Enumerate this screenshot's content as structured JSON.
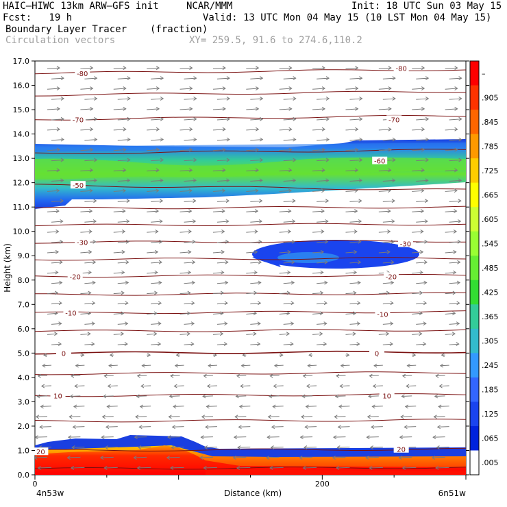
{
  "header": {
    "model": "HAIC–HIWC 13km ARW–GFS init",
    "org": "NCAR/MMM",
    "init": "Init: 18 UTC Sun 03 May 15",
    "fcst": "Fcst:   19 h",
    "valid": "Valid: 13 UTC Mon 04 May 15 (10 LST Mon 04 May 15)",
    "field": "Boundary Layer Tracer",
    "units": "(fraction)",
    "vectors": "Circulation vectors",
    "xy": "XY= 259.5, 91.6 to 274.6,110.2"
  },
  "chart_data": {
    "type": "cross-section",
    "title": "Boundary Layer Tracer",
    "units": "(fraction)",
    "xlabel": "Distance (km)",
    "ylabel": "Height (km)",
    "x_ticks": [
      "0",
      "200"
    ],
    "x_tick_values": [
      0,
      200
    ],
    "xlim": [
      0,
      300
    ],
    "ylim": [
      0,
      17
    ],
    "y_ticks": [
      "0.0",
      "1.0",
      "2.0",
      "3.0",
      "4.0",
      "5.0",
      "6.0",
      "7.0",
      "8.0",
      "9.0",
      "10.0",
      "11.0",
      "12.0",
      "13.0",
      "14.0",
      "15.0",
      "16.0",
      "17.0"
    ],
    "left_endpoint": "4n53w",
    "right_endpoint": "6n51w",
    "colorbar": {
      "labels": [
        "–",
        ".905",
        ".845",
        ".785",
        ".725",
        ".665",
        ".605",
        ".545",
        ".485",
        ".425",
        ".365",
        ".305",
        ".245",
        ".185",
        ".125",
        ".065",
        ".005"
      ],
      "colors": [
        "#ff0000",
        "#ff3300",
        "#ff6600",
        "#ff9900",
        "#ffcc00",
        "#ffff00",
        "#ccff33",
        "#99ff33",
        "#66ee33",
        "#33dd33",
        "#33cc99",
        "#33bbcc",
        "#3399ff",
        "#3366ff",
        "#1a44ee",
        "#0022dd",
        "#ffffff"
      ]
    },
    "temperature_contour_labels": [
      {
        "label": "-80",
        "x": 33,
        "z": 16.5
      },
      {
        "label": "-80",
        "x": 255,
        "z": 16.7
      },
      {
        "label": "-70",
        "x": 30,
        "z": 14.6
      },
      {
        "label": "-70",
        "x": 250,
        "z": 14.6
      },
      {
        "label": "-60",
        "x": 240,
        "z": 12.9
      },
      {
        "label": "-50",
        "x": 30,
        "z": 11.9
      },
      {
        "label": "-30",
        "x": 33,
        "z": 9.55
      },
      {
        "label": "-30",
        "x": 258,
        "z": 9.5
      },
      {
        "label": "-20",
        "x": 28,
        "z": 8.15
      },
      {
        "label": "-20",
        "x": 248,
        "z": 8.15
      },
      {
        "label": "-10",
        "x": 25,
        "z": 6.65
      },
      {
        "label": "-10",
        "x": 242,
        "z": 6.6
      },
      {
        "label": "0",
        "x": 20,
        "z": 5.0
      },
      {
        "label": "0",
        "x": 238,
        "z": 5.0
      },
      {
        "label": "10",
        "x": 16,
        "z": 3.25
      },
      {
        "label": "10",
        "x": 245,
        "z": 3.25
      },
      {
        "label": "20",
        "x": 4,
        "z": 0.95
      },
      {
        "label": "20",
        "x": 255,
        "z": 1.05
      }
    ],
    "wind_vectors": {
      "upper_levels": "westerly (left to right)",
      "lower_levels": "easterly (right to left)",
      "reversal_height_km": 5.0
    }
  }
}
